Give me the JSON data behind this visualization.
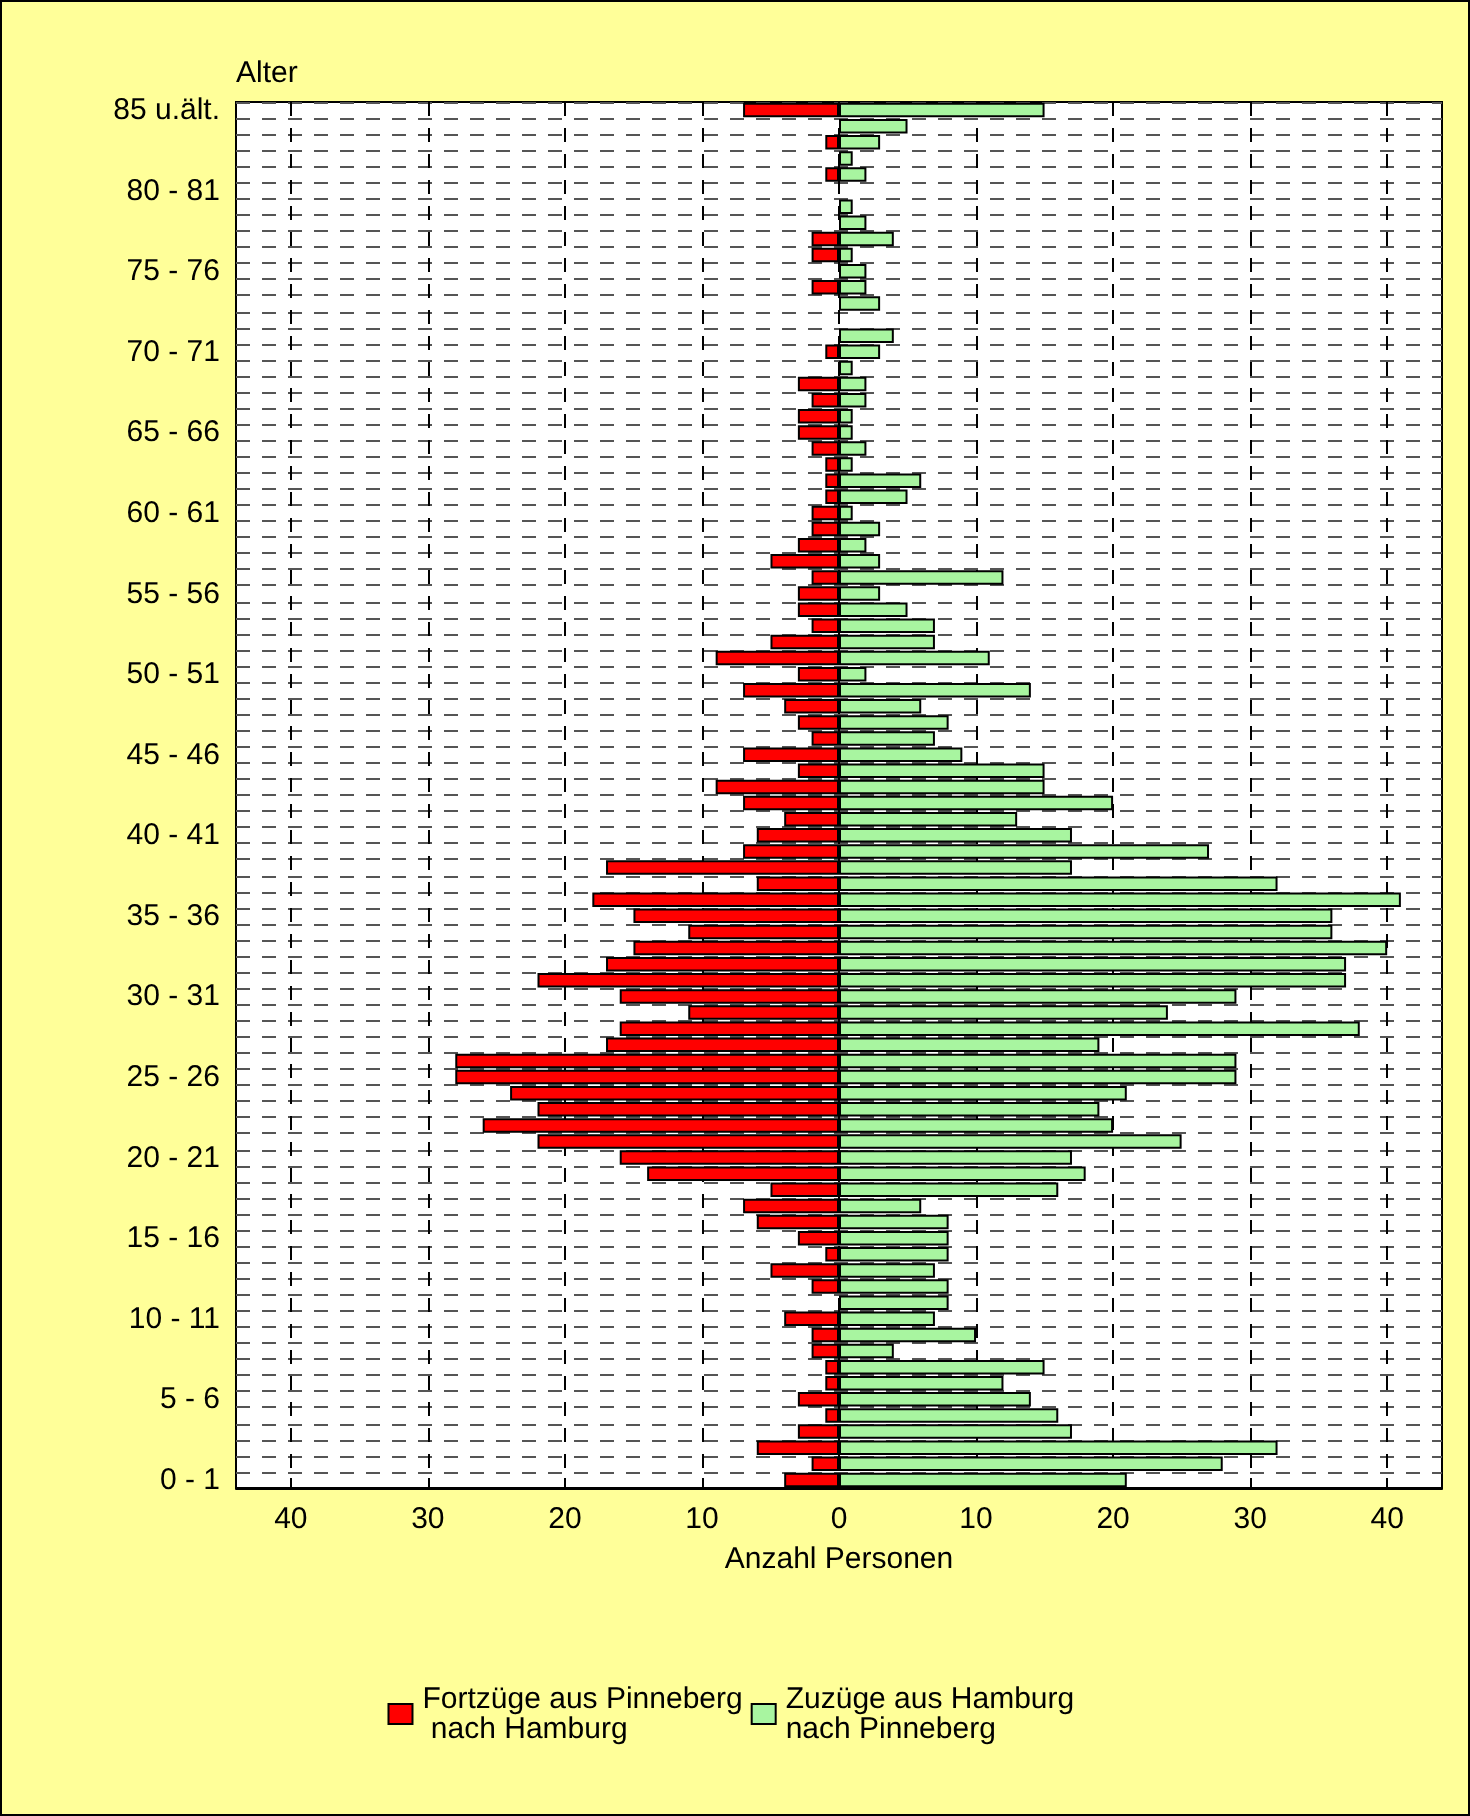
{
  "chart_data": {
    "type": "bar",
    "orientation": "horizontal",
    "ylabel": "Alter",
    "xlabel": "Anzahl Personen",
    "categories": [
      "85 u.ält.",
      null,
      null,
      null,
      null,
      "80 - 81",
      null,
      null,
      null,
      null,
      "75 - 76",
      null,
      null,
      null,
      null,
      "70 - 71",
      null,
      null,
      null,
      null,
      "65 - 66",
      null,
      null,
      null,
      null,
      "60 - 61",
      null,
      null,
      null,
      null,
      "55 - 56",
      null,
      null,
      null,
      null,
      "50 - 51",
      null,
      null,
      null,
      null,
      "45 - 46",
      null,
      null,
      null,
      null,
      "40 - 41",
      null,
      null,
      null,
      null,
      "35 - 36",
      null,
      null,
      null,
      null,
      "30 - 31",
      null,
      null,
      null,
      null,
      "25 - 26",
      null,
      null,
      null,
      null,
      "20 - 21",
      null,
      null,
      null,
      null,
      "15 - 16",
      null,
      null,
      null,
      null,
      "10 - 11",
      null,
      null,
      null,
      null,
      "5 - 6",
      null,
      null,
      null,
      null,
      "0 - 1"
    ],
    "series": [
      {
        "name": "Fortzüge aus Pinneberg nach Hamburg",
        "color": "#ff0000",
        "values": [
          -7,
          0,
          -1,
          0,
          -1,
          0,
          0,
          0,
          -2,
          -2,
          0,
          -2,
          0,
          0,
          0,
          -1,
          0,
          -3,
          -2,
          -3,
          -3,
          -2,
          -1,
          -1,
          -1,
          -2,
          -2,
          -3,
          -5,
          -2,
          -3,
          -3,
          -2,
          -5,
          -9,
          -3,
          -7,
          -4,
          -3,
          -2,
          -7,
          -3,
          -9,
          -7,
          -4,
          -6,
          -7,
          -17,
          -6,
          -18,
          -15,
          -11,
          -15,
          -17,
          -22,
          -16,
          -11,
          -16,
          -17,
          -28,
          -28,
          -24,
          -22,
          -26,
          -22,
          -16,
          -14,
          -5,
          -7,
          -6,
          -3,
          -1,
          -5,
          -2,
          0,
          -4,
          -2,
          -2,
          -1,
          -1,
          -3,
          -1,
          -3,
          -6,
          -2,
          -4
        ]
      },
      {
        "name": "Zuzüge aus Hamburg nach Pinneberg",
        "color": "#a8f5a0",
        "values": [
          15,
          5,
          3,
          1,
          2,
          0,
          1,
          2,
          4,
          1,
          2,
          2,
          3,
          0,
          4,
          3,
          1,
          2,
          2,
          1,
          1,
          2,
          1,
          6,
          5,
          1,
          3,
          2,
          3,
          12,
          3,
          5,
          7,
          7,
          11,
          2,
          14,
          6,
          8,
          7,
          9,
          15,
          15,
          20,
          13,
          17,
          27,
          17,
          32,
          41,
          36,
          36,
          40,
          37,
          37,
          29,
          24,
          38,
          19,
          29,
          29,
          21,
          19,
          20,
          25,
          17,
          18,
          16,
          6,
          8,
          8,
          8,
          7,
          8,
          8,
          7,
          10,
          4,
          15,
          12,
          14,
          16,
          17,
          32,
          28,
          21
        ]
      }
    ],
    "xlim": [
      -44,
      44
    ],
    "stacked": true,
    "xticks": [
      {
        "value": -40,
        "label": "40"
      },
      {
        "value": -30,
        "label": "30"
      },
      {
        "value": -20,
        "label": "20"
      },
      {
        "value": -10,
        "label": "10"
      },
      0,
      10,
      20,
      30,
      40
    ],
    "grid": true,
    "legend": "bottom"
  }
}
